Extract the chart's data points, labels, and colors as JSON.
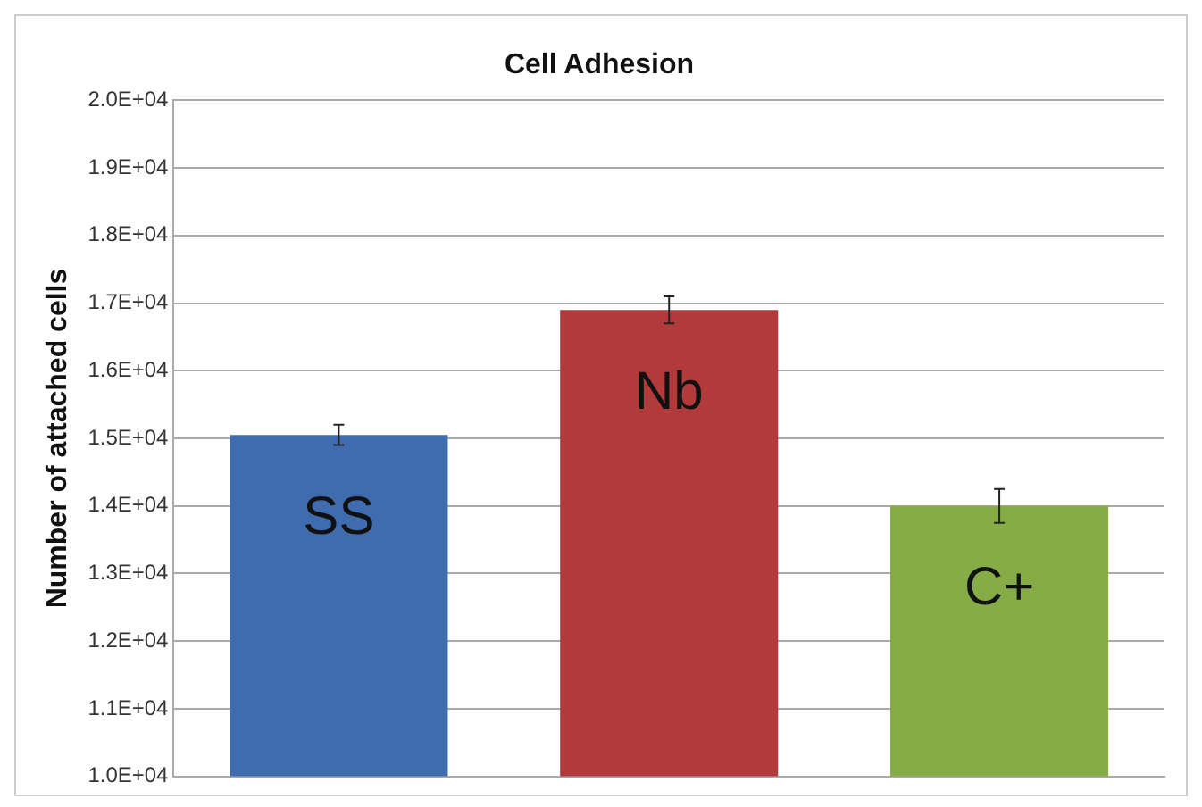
{
  "chart_data": {
    "type": "bar",
    "title": "Cell Adhesion",
    "ylabel": "Number of attached cells",
    "categories": [
      "SS",
      "Nb",
      "C+"
    ],
    "values": [
      15050,
      16900,
      14000
    ],
    "colors": [
      "#3f6baf",
      "#b33a3b",
      "#86ac46"
    ],
    "errors": [
      150,
      200,
      250
    ],
    "ylim": [
      10000,
      20000
    ],
    "yticks": [
      {
        "value": 10000,
        "label": "1.0E+04"
      },
      {
        "value": 11000,
        "label": "1.1E+04"
      },
      {
        "value": 12000,
        "label": "1.2E+04"
      },
      {
        "value": 13000,
        "label": "1.3E+04"
      },
      {
        "value": 14000,
        "label": "1.4E+04"
      },
      {
        "value": 15000,
        "label": "1.5E+04"
      },
      {
        "value": 16000,
        "label": "1.6E+04"
      },
      {
        "value": 17000,
        "label": "1.7E+04"
      },
      {
        "value": 18000,
        "label": "1.8E+04"
      },
      {
        "value": 19000,
        "label": "1.9E+04"
      },
      {
        "value": 20000,
        "label": "2.0E+04"
      }
    ],
    "grid": "y",
    "legend": false,
    "tick_labels": "y"
  }
}
